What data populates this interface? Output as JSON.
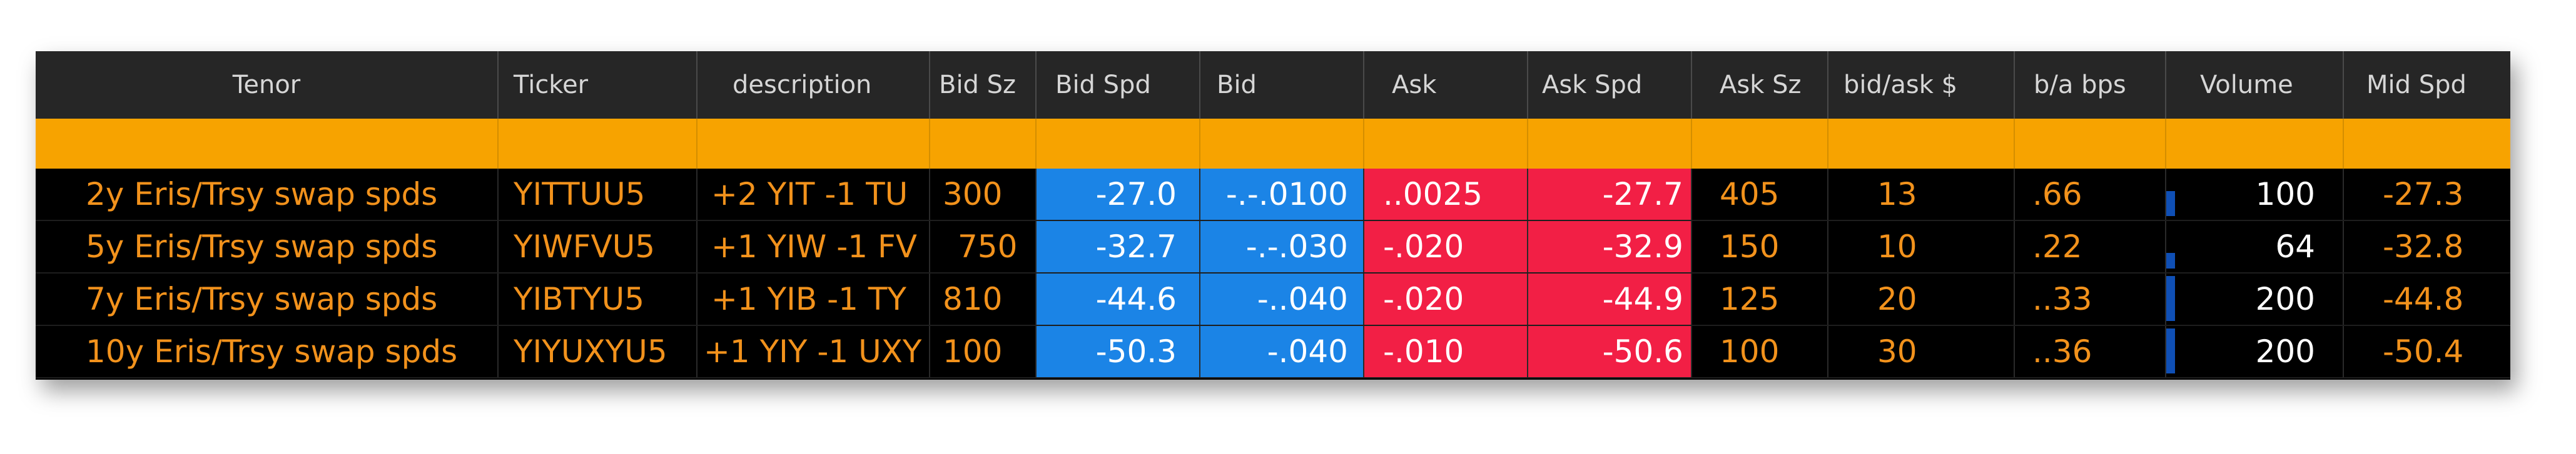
{
  "columns": [
    "Tenor",
    "Ticker",
    "description",
    "Bid Sz",
    "Bid Spd",
    "Bid",
    "Ask",
    "Ask Spd",
    "Ask Sz",
    "bid/ask $",
    "b/a bps",
    "Volume",
    "Mid Spd"
  ],
  "rows": [
    {
      "tenor": "2y Eris/Trsy swap spds",
      "ticker": "YITTUU5",
      "description": "+2 YIT -1 TU",
      "bid_sz": "300",
      "bid_spd": "-27.0",
      "bid": "-.-.0100",
      "ask": "..0025",
      "ask_spd": "-27.7",
      "ask_sz": "405",
      "ba_dollar": "13",
      "ba_bps": ".66",
      "volume": "100",
      "volume_level": 0.55,
      "mid_spd": "-27.3"
    },
    {
      "tenor": "5y Eris/Trsy swap spds",
      "ticker": "YIWFVU5",
      "description": "+1 YIW -1 FV",
      "bid_sz": "750",
      "bid_spd": "-32.7",
      "bid": "-.-.030",
      "ask": "-.020",
      "ask_spd": "-32.9",
      "ask_sz": "150",
      "ba_dollar": "10",
      "ba_bps": ".22",
      "volume": "64",
      "volume_level": 0.35,
      "mid_spd": "-32.8"
    },
    {
      "tenor": "7y Eris/Trsy swap spds",
      "ticker": "YIBTYU5",
      "description": "+1 YIB  -1 TY",
      "bid_sz": "810",
      "bid_spd": "-44.6",
      "bid": "-..040",
      "ask": "-.020",
      "ask_spd": "-44.9",
      "ask_sz": "125",
      "ba_dollar": "20",
      "ba_bps": "..33",
      "volume": "200",
      "volume_level": 1.0,
      "mid_spd": "-44.8"
    },
    {
      "tenor": "10y Eris/Trsy swap spds",
      "ticker": "YIYUXYU5",
      "description": "+1 YIY -1 UXY",
      "bid_sz": "100",
      "bid_spd": "-50.3",
      "bid": "-.040",
      "ask": "-.010",
      "ask_spd": "-50.6",
      "ask_sz": "100",
      "ba_dollar": "30",
      "ba_bps": "..36",
      "volume": "200",
      "volume_level": 1.0,
      "mid_spd": "-50.4"
    }
  ],
  "colors": {
    "header_bg": "#262626",
    "filter_row": "#f7a300",
    "text_orange": "#f2921c",
    "bid_blue": "#1b84e6",
    "ask_red": "#f21f45",
    "volume_bar": "#0f4fb5"
  }
}
